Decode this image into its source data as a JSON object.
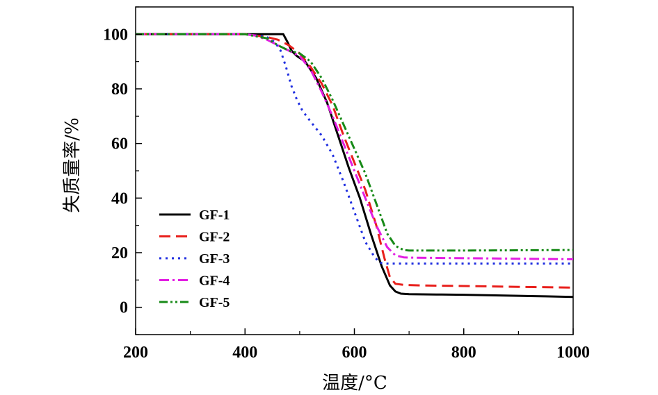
{
  "chart_data": {
    "type": "line",
    "title": "",
    "xlabel": "温度/°C",
    "ylabel": "失质量率/%",
    "xlim": [
      200,
      1000
    ],
    "ylim": [
      -10,
      110
    ],
    "xticks": [
      200,
      400,
      600,
      800,
      1000
    ],
    "yticks": [
      0,
      20,
      40,
      60,
      80,
      100
    ],
    "grid": false,
    "legend_position": "lower-left",
    "series": [
      {
        "name": "GF-1",
        "color": "#000000",
        "dash": "solid",
        "x": [
          200,
          300,
          400,
          470,
          478,
          485,
          495,
          510,
          530,
          550,
          570,
          590,
          610,
          630,
          650,
          665,
          675,
          685,
          700,
          750,
          800,
          850,
          900,
          950,
          1000
        ],
        "y": [
          100,
          100,
          100,
          100,
          97,
          94,
          92,
          90,
          84,
          75,
          63,
          51,
          40,
          27,
          15,
          8,
          5.8,
          5,
          4.8,
          4.7,
          4.6,
          4.4,
          4.2,
          4,
          3.8
        ]
      },
      {
        "name": "GF-2",
        "color": "#e8201c",
        "dash": "dashed",
        "x": [
          200,
          300,
          400,
          440,
          460,
          480,
          500,
          520,
          540,
          560,
          580,
          600,
          620,
          640,
          655,
          665,
          675,
          690,
          720,
          800,
          900,
          1000
        ],
        "y": [
          100,
          100,
          100,
          99,
          98,
          96,
          93,
          88,
          82,
          74,
          63,
          53,
          43,
          30,
          18,
          11,
          8.6,
          8.2,
          8,
          7.8,
          7.5,
          7.2
        ]
      },
      {
        "name": "GF-3",
        "color": "#1f2ee0",
        "dash": "dotted",
        "x": [
          200,
          300,
          400,
          440,
          455,
          465,
          475,
          485,
          495,
          505,
          520,
          540,
          560,
          580,
          600,
          620,
          635,
          645,
          650,
          660,
          700,
          800,
          900,
          1000
        ],
        "y": [
          100,
          100,
          100,
          99,
          97,
          94,
          88,
          81,
          76,
          72,
          68,
          63,
          56,
          46,
          35,
          24,
          19,
          16.5,
          16.2,
          16,
          16,
          16,
          16,
          16
        ]
      },
      {
        "name": "GF-4",
        "color": "#e21ee2",
        "dash": "dashdot",
        "x": [
          200,
          300,
          400,
          420,
          440,
          460,
          480,
          500,
          520,
          540,
          560,
          580,
          600,
          620,
          640,
          660,
          675,
          690,
          700,
          800,
          900,
          1000
        ],
        "y": [
          100,
          100,
          100,
          99.5,
          98,
          96,
          94,
          92,
          87,
          79,
          70,
          60,
          50,
          40,
          30,
          22,
          19,
          18.3,
          18.2,
          18,
          17.8,
          17.6
        ]
      },
      {
        "name": "GF-5",
        "color": "#178a17",
        "dash": "dashdotdot",
        "x": [
          200,
          300,
          400,
          440,
          460,
          480,
          500,
          520,
          540,
          560,
          580,
          600,
          620,
          640,
          660,
          675,
          690,
          700,
          800,
          900,
          1000
        ],
        "y": [
          100,
          100,
          100,
          98.5,
          96,
          94,
          93,
          90,
          84,
          76,
          67,
          58,
          49,
          38,
          27,
          22.5,
          21,
          20.8,
          20.8,
          20.9,
          21
        ]
      }
    ]
  }
}
